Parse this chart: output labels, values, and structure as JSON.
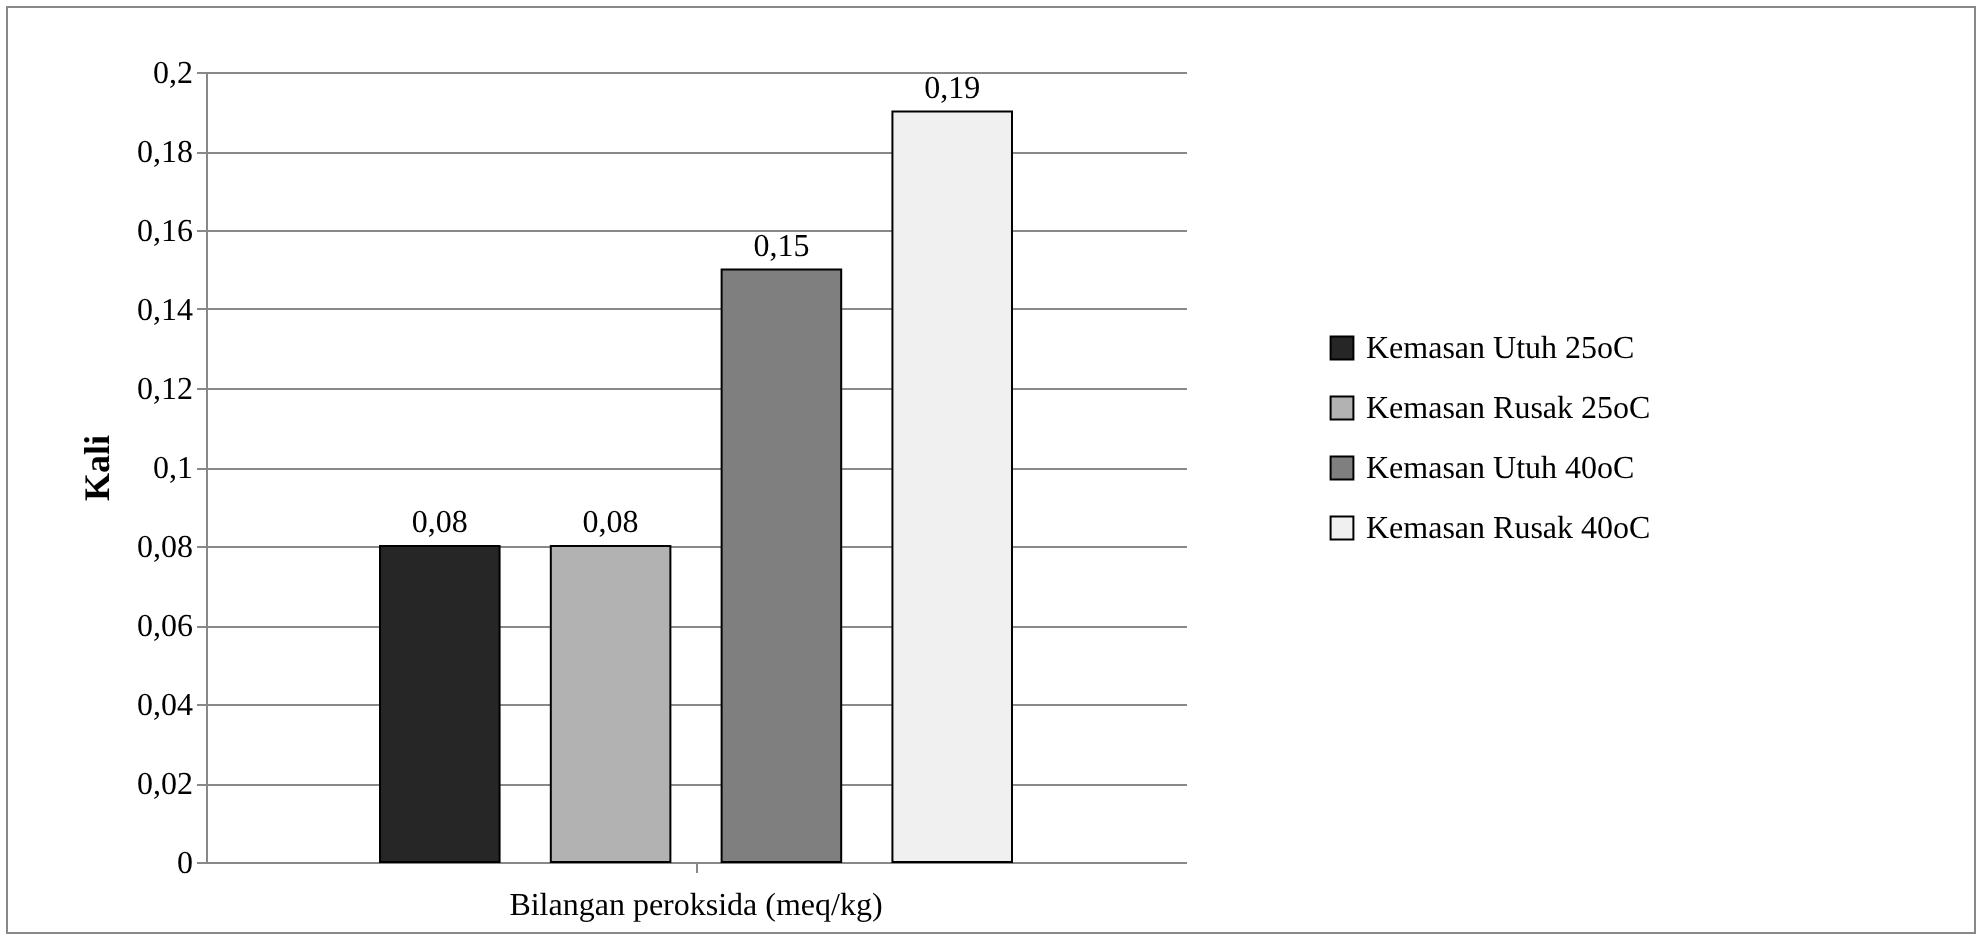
{
  "chart_data": {
    "type": "bar",
    "ylabel": "Kali",
    "categories": [
      "Bilangan peroksida (meq/kg)"
    ],
    "series": [
      {
        "name": "Kemasan Utuh 25oC",
        "color": "#262626",
        "values": [
          0.08
        ],
        "value_labels": [
          "0,08"
        ]
      },
      {
        "name": "Kemasan Rusak 25oC",
        "color": "#b2b2b2",
        "values": [
          0.08
        ],
        "value_labels": [
          "0,08"
        ]
      },
      {
        "name": "Kemasan Utuh 40oC",
        "color": "#7f7f7f",
        "values": [
          0.15
        ],
        "value_labels": [
          "0,15"
        ]
      },
      {
        "name": "Kemasan Rusak 40oC",
        "color": "#f0f0f0",
        "values": [
          0.19
        ],
        "value_labels": [
          "0,19"
        ]
      }
    ],
    "ylim": [
      0,
      0.2
    ],
    "yticks": [
      0,
      {
        "value": 0.02,
        "label": "0,02"
      },
      {
        "value": 0.04,
        "label": "0,04"
      },
      {
        "value": 0.06,
        "label": "0,06"
      },
      {
        "value": 0.08,
        "label": "0,08"
      },
      {
        "value": 0.1,
        "label": "0,1"
      },
      {
        "value": 0.12,
        "label": "0,12"
      },
      {
        "value": 0.14,
        "label": "0,14"
      },
      {
        "value": 0.16,
        "label": "0,16"
      },
      {
        "value": 0.18,
        "label": "0,18"
      },
      {
        "value": 0.2,
        "label": "0,2"
      }
    ],
    "grid": "y",
    "legend": "right"
  }
}
